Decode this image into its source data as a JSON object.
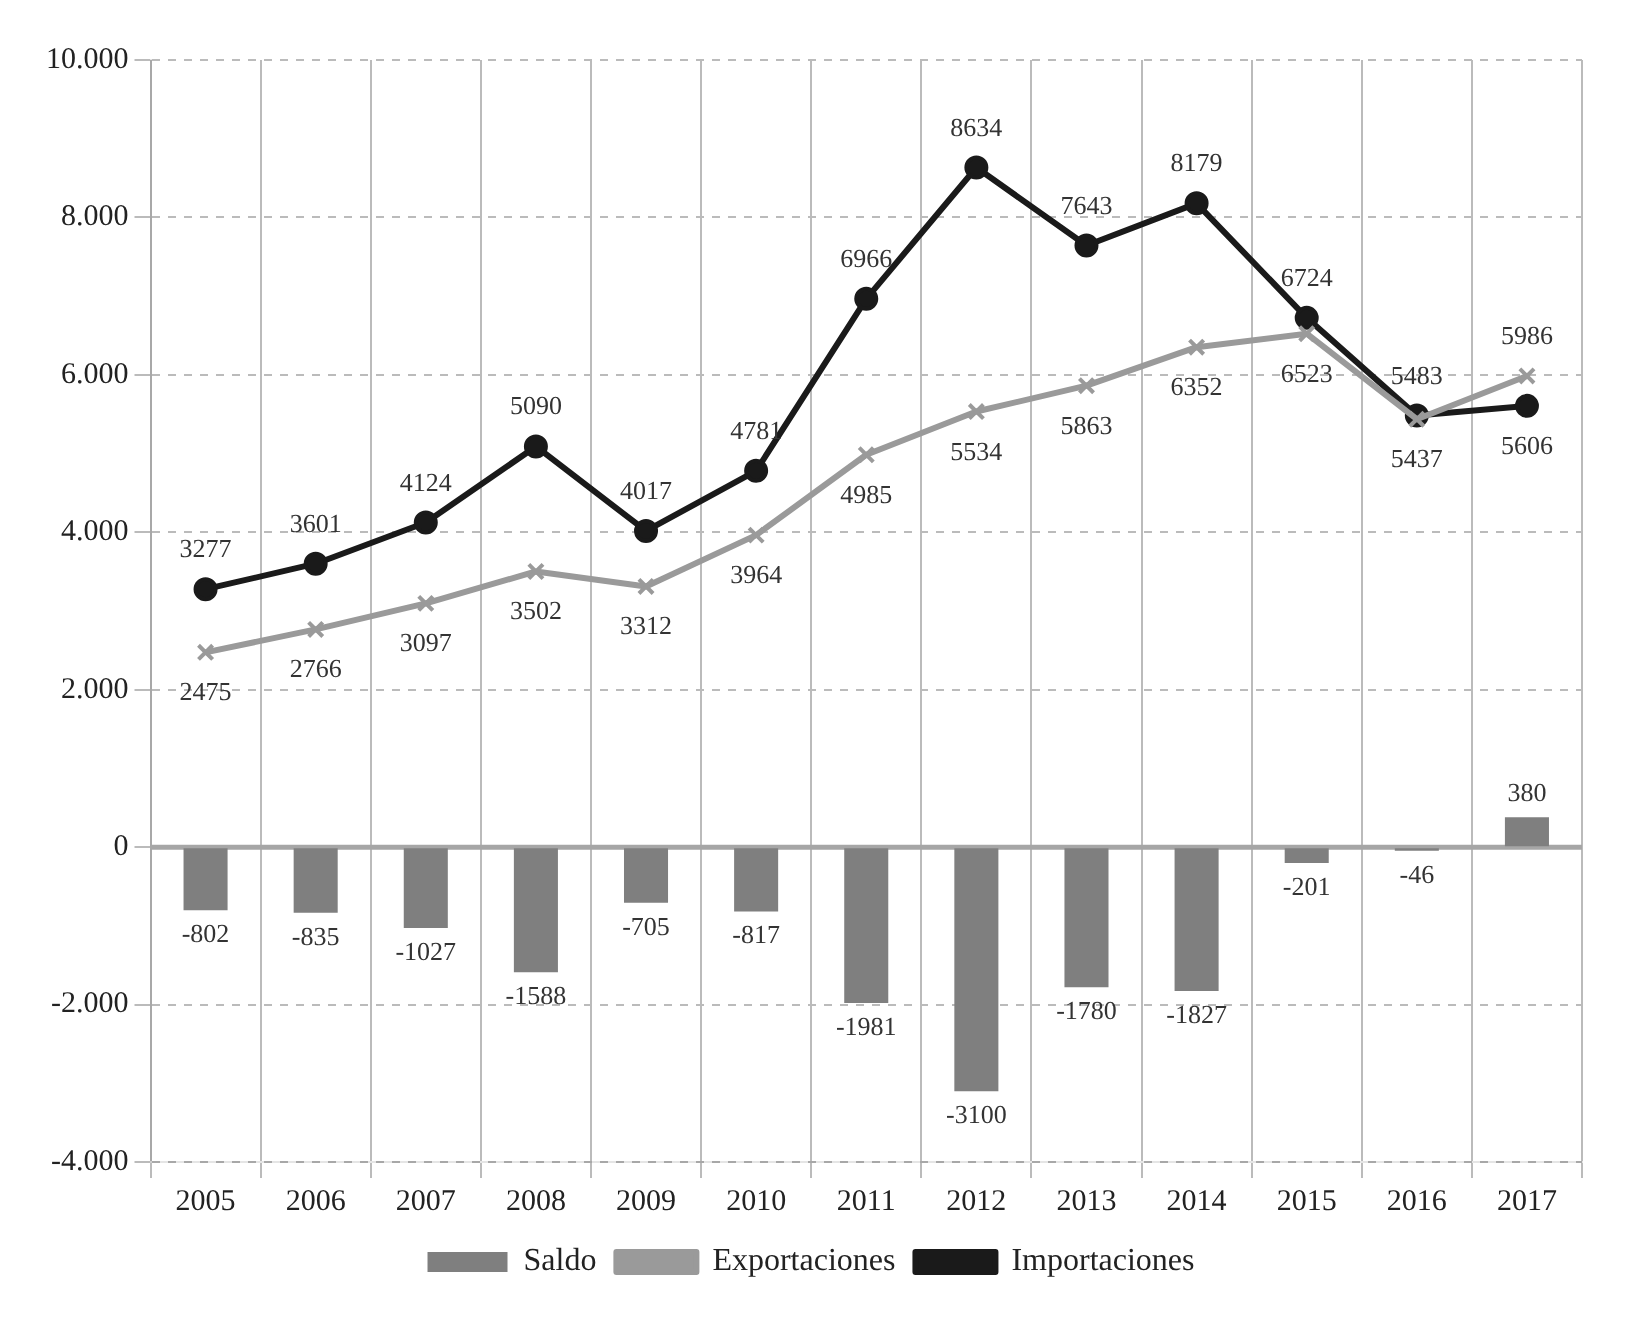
{
  "chart_data": {
    "type": "bar",
    "categories": [
      "2005",
      "2006",
      "2007",
      "2008",
      "2009",
      "2010",
      "2011",
      "2012",
      "2013",
      "2014",
      "2015",
      "2016",
      "2017"
    ],
    "series": [
      {
        "name": "Saldo",
        "color": "#7f7f7f",
        "values": [
          -802,
          -835,
          -1027,
          -1588,
          -705,
          -817,
          -1981,
          -3100,
          -1780,
          -1827,
          -201,
          -46,
          380
        ]
      },
      {
        "name": "Exportaciones",
        "type": "line",
        "color": "#9a9a9a",
        "marker": "cross",
        "values": [
          2475,
          2766,
          3097,
          3502,
          3312,
          3964,
          4985,
          5534,
          5863,
          6352,
          6523,
          5437,
          5986
        ]
      },
      {
        "name": "Importaciones",
        "type": "line",
        "color": "#1a1a1a",
        "marker": "circle",
        "values": [
          3277,
          3601,
          4124,
          5090,
          4017,
          4781,
          6966,
          8634,
          7643,
          8179,
          6724,
          5483,
          5606
        ]
      }
    ],
    "ylim": [
      -4000,
      10000
    ],
    "yticks": [
      {
        "value": -4000,
        "label": "-4.000"
      },
      {
        "value": -2000,
        "label": "-2.000"
      },
      0,
      {
        "value": 2000,
        "label": "2.000"
      },
      {
        "value": 4000,
        "label": "4.000"
      },
      {
        "value": 6000,
        "label": "6.000"
      },
      {
        "value": 8000,
        "label": "8.000"
      },
      {
        "value": 10000,
        "label": "10.000"
      }
    ],
    "ref_lines": [
      {
        "axis": "y",
        "value": 0,
        "color": "#a6a6a6"
      }
    ],
    "grid": true,
    "legend": "bottom",
    "data_labels": true,
    "line_style": "solid"
  }
}
